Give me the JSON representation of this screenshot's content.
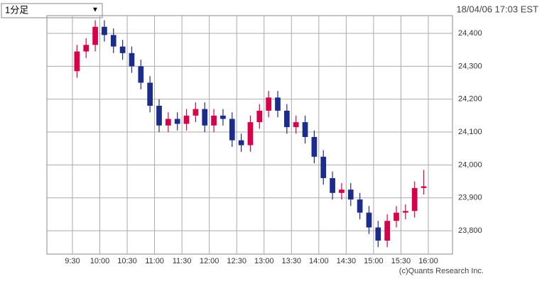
{
  "header": {
    "dropdown": "1分足",
    "dropdown_arrow": "▼",
    "timestamp": "18/04/06 17:03 EST"
  },
  "chart_data": {
    "type": "candlestick",
    "credit": "(c)Quants Research Inc.",
    "up_color": "#d8004a",
    "down_color": "#1c2c8c",
    "x": [
      575,
      585,
      595,
      605,
      615,
      625,
      635,
      645,
      655,
      665,
      675,
      685,
      695,
      705,
      715,
      725,
      735,
      745,
      755,
      765,
      775,
      785,
      795,
      805,
      815,
      825,
      835,
      845,
      855,
      865,
      875,
      885,
      895,
      905,
      915,
      925,
      935,
      945,
      955
    ],
    "open": [
      24285,
      24345,
      24365,
      24420,
      24395,
      24360,
      24340,
      24300,
      24250,
      24180,
      24120,
      24140,
      24125,
      24150,
      24170,
      24120,
      24150,
      24140,
      24075,
      24060,
      24130,
      24165,
      24205,
      24165,
      24115,
      24130,
      24085,
      24025,
      23960,
      23915,
      23925,
      23895,
      23855,
      23810,
      23770,
      23830,
      23855,
      23860,
      23930
    ],
    "high": [
      24365,
      24385,
      24440,
      24440,
      24415,
      24380,
      24360,
      24320,
      24270,
      24200,
      24160,
      24160,
      24170,
      24190,
      24190,
      24170,
      24170,
      24160,
      24095,
      24150,
      24185,
      24225,
      24225,
      24185,
      24150,
      24150,
      24105,
      24045,
      23980,
      23945,
      23945,
      23915,
      23875,
      23830,
      23850,
      23875,
      23880,
      23950,
      23985
    ],
    "low": [
      24265,
      24325,
      24345,
      24375,
      24340,
      24320,
      24280,
      24230,
      24160,
      24100,
      24100,
      24105,
      24105,
      24130,
      24100,
      24100,
      24120,
      24055,
      24040,
      24040,
      24110,
      24145,
      24145,
      24095,
      24095,
      24065,
      24005,
      23940,
      23895,
      23895,
      23875,
      23835,
      23790,
      23750,
      23750,
      23810,
      23835,
      23840,
      23910
    ],
    "close": [
      24345,
      24365,
      24420,
      24395,
      24360,
      24340,
      24300,
      24250,
      24180,
      24120,
      24140,
      24125,
      24150,
      24170,
      24120,
      24150,
      24140,
      24075,
      24060,
      24130,
      24165,
      24205,
      24165,
      24115,
      24130,
      24085,
      24025,
      23960,
      23915,
      23925,
      23895,
      23855,
      23810,
      23770,
      23830,
      23855,
      23860,
      23930,
      23935
    ],
    "xlim": [
      542,
      986.5
    ],
    "xticks": [
      {
        "value": 570,
        "label": "9:30"
      },
      {
        "value": 600,
        "label": "10:00"
      },
      {
        "value": 630,
        "label": "10:30"
      },
      {
        "value": 660,
        "label": "11:00"
      },
      {
        "value": 690,
        "label": "11:30"
      },
      {
        "value": 720,
        "label": "12:00"
      },
      {
        "value": 750,
        "label": "12:30"
      },
      {
        "value": 780,
        "label": "13:00"
      },
      {
        "value": 810,
        "label": "13:30"
      },
      {
        "value": 840,
        "label": "14:00"
      },
      {
        "value": 870,
        "label": "14:30"
      },
      {
        "value": 900,
        "label": "15:00"
      },
      {
        "value": 930,
        "label": "15:30"
      },
      {
        "value": 960,
        "label": "16:00"
      }
    ],
    "ylim": [
      23729,
      24454
    ],
    "yticks": [
      {
        "value": 23800,
        "label": "23,800"
      },
      {
        "value": 23900,
        "label": "23,900"
      },
      {
        "value": 24000,
        "label": "24,000"
      },
      {
        "value": 24100,
        "label": "24,100"
      },
      {
        "value": 24200,
        "label": "24,200"
      },
      {
        "value": 24300,
        "label": "24,300"
      },
      {
        "value": 24400,
        "label": "24,400"
      }
    ],
    "grid": true
  }
}
